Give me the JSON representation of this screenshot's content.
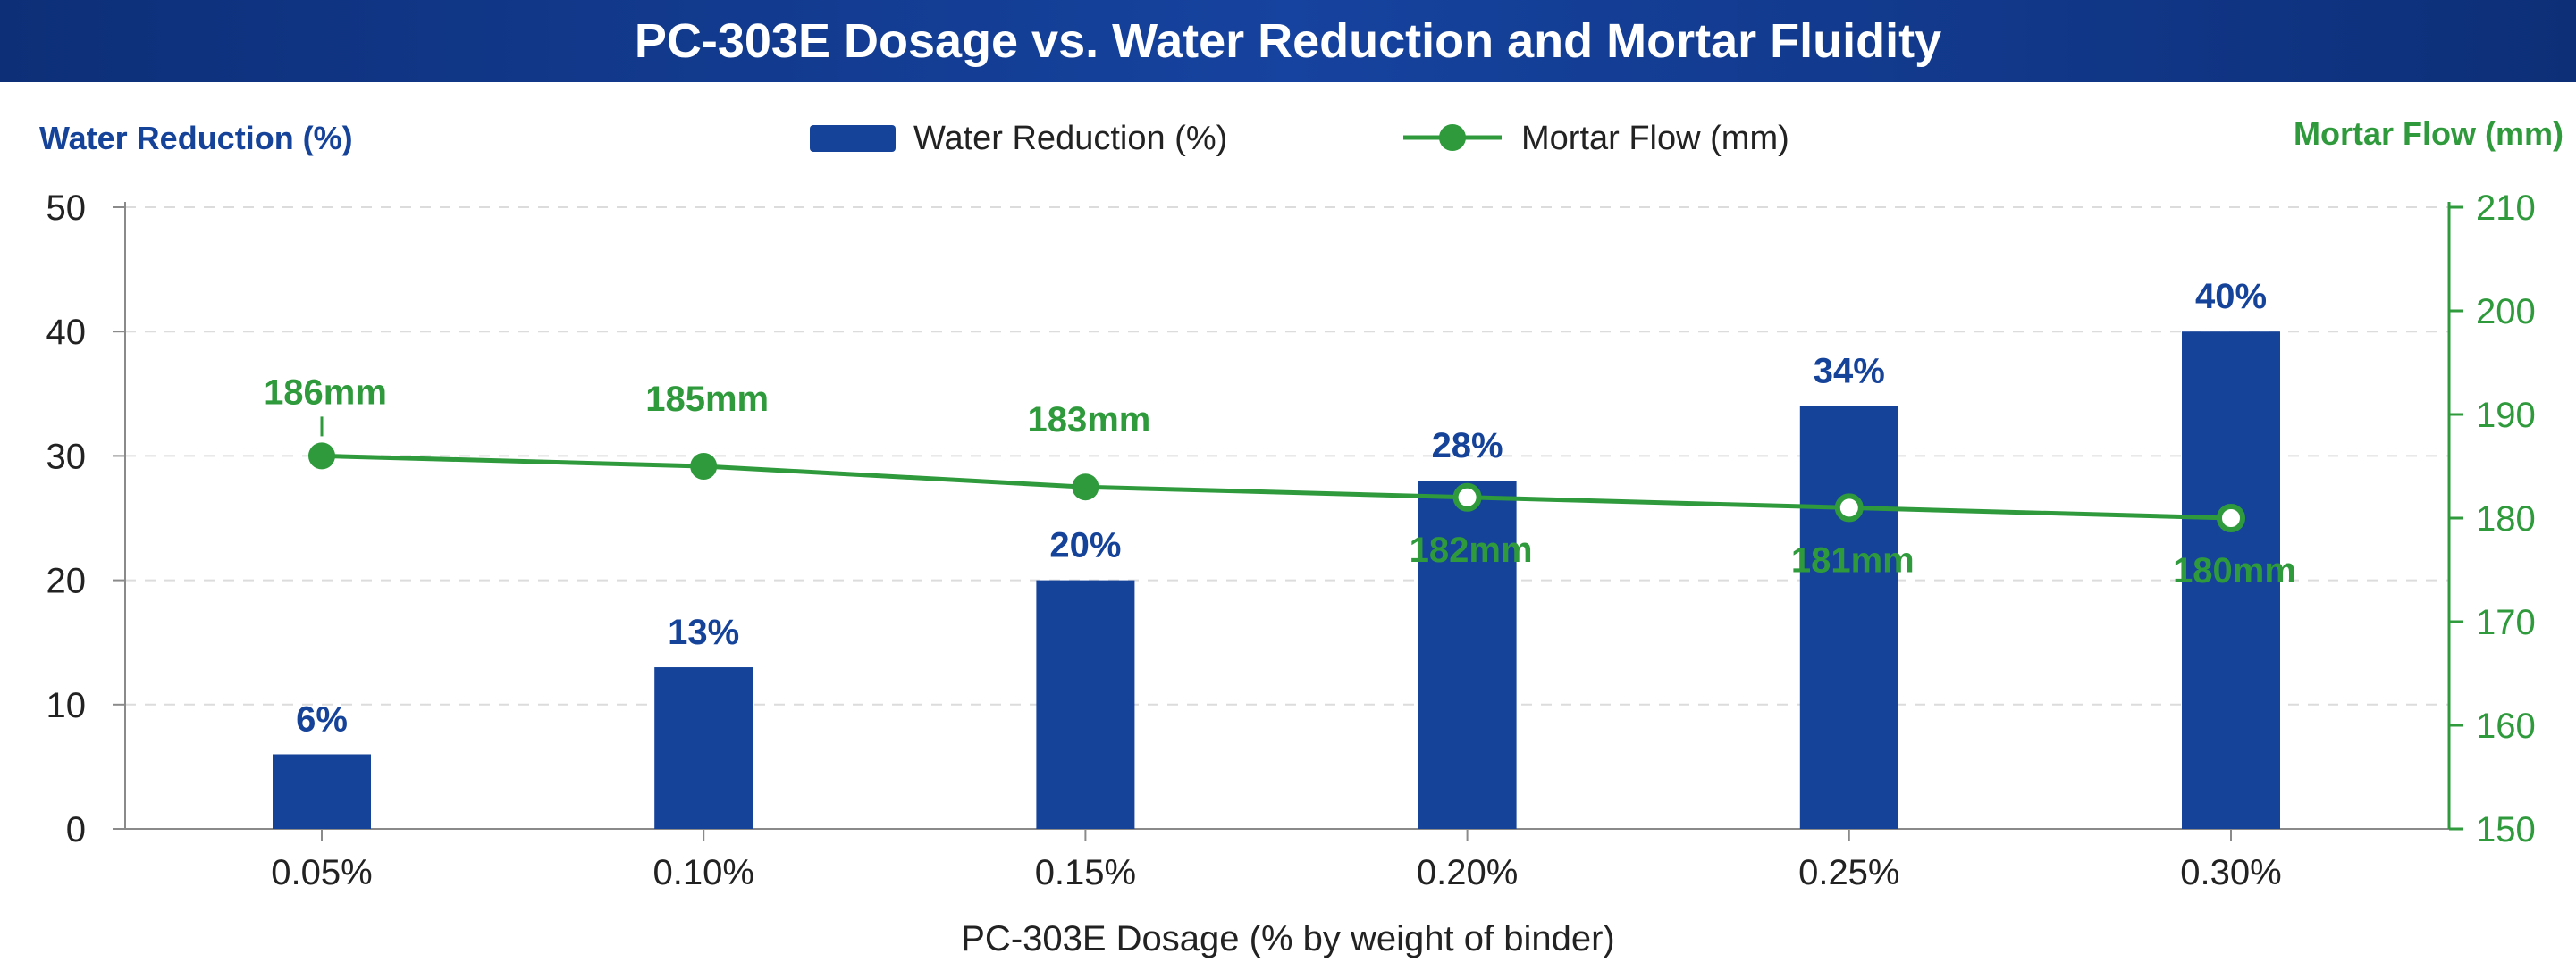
{
  "chart_data": {
    "title": "PC-303E Dosage vs. Water Reduction and Mortar Fluidity",
    "type": "bar",
    "xlabel": "PC-303E Dosage (% by weight of binder)",
    "categories": [
      "0.05%",
      "0.10%",
      "0.15%",
      "0.20%",
      "0.25%",
      "0.30%"
    ],
    "y_left": {
      "label": "Water Reduction (%)",
      "range": [
        0,
        50
      ],
      "ticks": [
        0,
        10,
        20,
        30,
        40,
        50
      ]
    },
    "y_right": {
      "label": "Mortar Flow (mm)",
      "range": [
        150,
        210
      ],
      "ticks": [
        150,
        160,
        170,
        180,
        190,
        200,
        210
      ]
    },
    "series": [
      {
        "name": "Water Reduction (%)",
        "type": "bar",
        "axis": "left",
        "color": "#16439a",
        "values": [
          6,
          13,
          20,
          28,
          34,
          40
        ],
        "labels": [
          "6%",
          "13%",
          "20%",
          "28%",
          "34%",
          "40%"
        ]
      },
      {
        "name": "Mortar Flow (mm)",
        "type": "line",
        "axis": "right",
        "color": "#2e9a3c",
        "values": [
          186,
          185,
          183,
          182,
          181,
          180
        ],
        "labels": [
          "186mm",
          "185mm",
          "183mm",
          "182mm",
          "181mm",
          "180mm"
        ]
      }
    ],
    "legend": "top-center",
    "grid": "horizontal dashed"
  }
}
